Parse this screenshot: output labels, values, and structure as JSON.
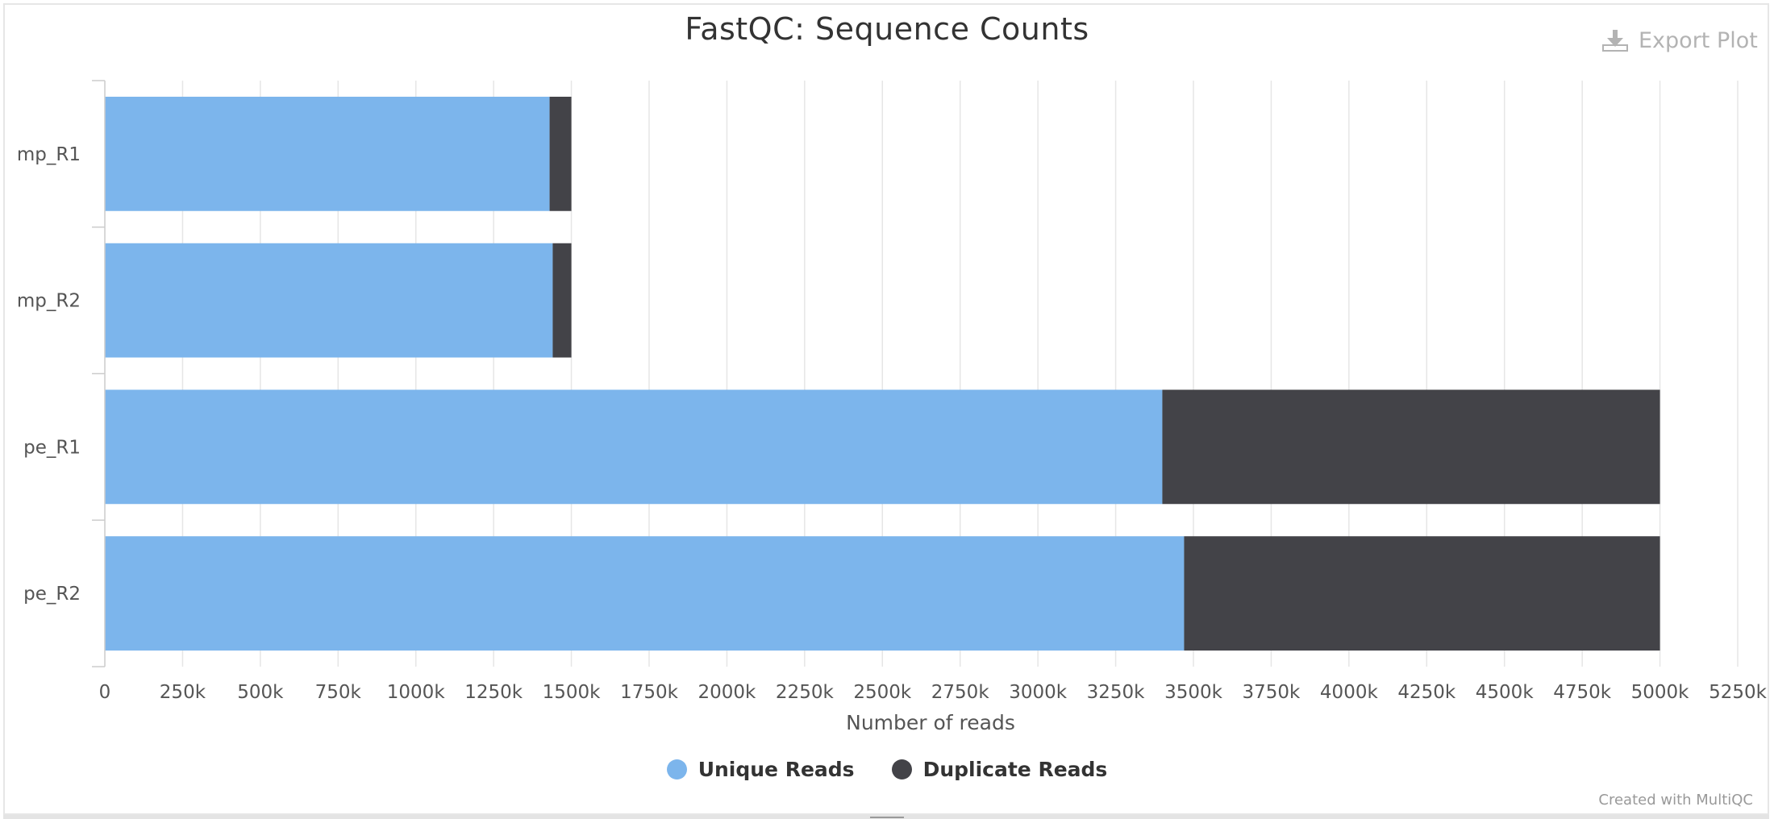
{
  "header": {
    "export_label": "Export Plot"
  },
  "footer": {
    "credits": "Created with MultiQC"
  },
  "colors": {
    "unique": "#7cb5ec",
    "duplicate": "#434348",
    "grid": "#e6e6e6",
    "axis_text": "#555555",
    "export_icon": "#b3b3b3"
  },
  "chart_data": {
    "type": "bar",
    "orientation": "horizontal",
    "stacked": true,
    "title": "FastQC: Sequence Counts",
    "xlabel": "Number of reads",
    "ylabel": "",
    "categories": [
      "mp_R1",
      "mp_R2",
      "pe_R1",
      "pe_R2"
    ],
    "series": [
      {
        "name": "Unique Reads",
        "color": "#7cb5ec",
        "values": [
          1430000,
          1440000,
          3400000,
          3470000
        ]
      },
      {
        "name": "Duplicate Reads",
        "color": "#434348",
        "values": [
          70000,
          60000,
          1600000,
          1530000
        ]
      }
    ],
    "xlim": [
      0,
      5250000
    ],
    "xticks": [
      0,
      250000,
      500000,
      750000,
      1000000,
      1250000,
      1500000,
      1750000,
      2000000,
      2250000,
      2500000,
      2750000,
      3000000,
      3250000,
      3500000,
      3750000,
      4000000,
      4250000,
      4500000,
      4750000,
      5000000,
      5250000
    ],
    "xtick_labels": [
      "0",
      "250k",
      "500k",
      "750k",
      "1000k",
      "1250k",
      "1500k",
      "1750k",
      "2000k",
      "2250k",
      "2500k",
      "2750k",
      "3000k",
      "3250k",
      "3500k",
      "3750k",
      "4000k",
      "4250k",
      "4500k",
      "4750k",
      "5000k",
      "5250k"
    ],
    "grid": true,
    "legend_position": "bottom-center"
  }
}
